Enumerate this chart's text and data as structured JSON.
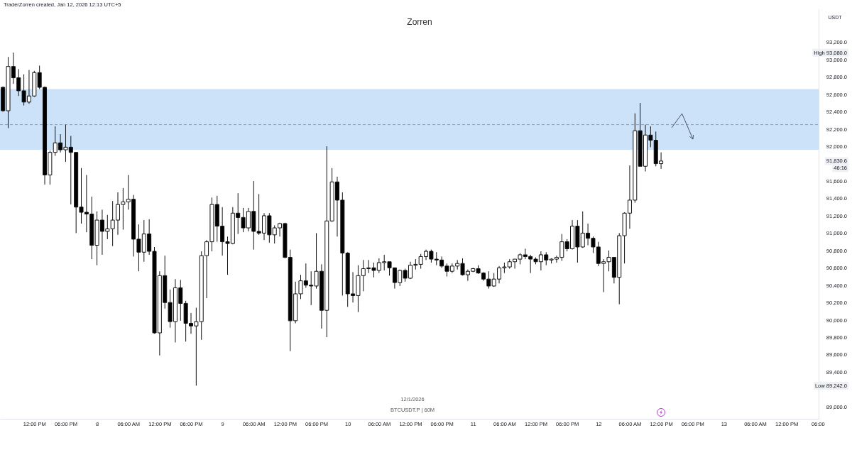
{
  "chart_data": {
    "type": "candlestick",
    "title": "Zorren",
    "subtitle": "TraderZorren created, Jan 12, 2026 12:13 UTC+5",
    "ylabel": "USDT",
    "x": [
      "2026-01-07T06:00",
      "2026-01-07T07:00",
      "2026-01-07T08:00",
      "2026-01-07T09:00",
      "2026-01-07T10:00",
      "2026-01-07T11:00",
      "2026-01-07T12:00",
      "2026-01-07T13:00",
      "2026-01-07T14:00",
      "2026-01-07T15:00",
      "2026-01-07T16:00",
      "2026-01-07T17:00",
      "2026-01-07T18:00",
      "2026-01-07T19:00",
      "2026-01-07T20:00",
      "2026-01-07T21:00",
      "2026-01-07T22:00",
      "2026-01-07T23:00",
      "2026-01-08T00:00",
      "2026-01-08T01:00",
      "2026-01-08T02:00",
      "2026-01-08T03:00",
      "2026-01-08T04:00",
      "2026-01-08T05:00",
      "2026-01-08T06:00",
      "2026-01-08T07:00",
      "2026-01-08T08:00",
      "2026-01-08T09:00",
      "2026-01-08T10:00",
      "2026-01-08T11:00",
      "2026-01-08T12:00",
      "2026-01-08T13:00",
      "2026-01-08T14:00",
      "2026-01-08T15:00",
      "2026-01-08T16:00",
      "2026-01-08T17:00",
      "2026-01-08T18:00",
      "2026-01-08T19:00",
      "2026-01-08T20:00",
      "2026-01-08T21:00",
      "2026-01-08T22:00",
      "2026-01-08T23:00",
      "2026-01-09T00:00",
      "2026-01-09T01:00",
      "2026-01-09T02:00",
      "2026-01-09T03:00",
      "2026-01-09T04:00",
      "2026-01-09T05:00",
      "2026-01-09T06:00",
      "2026-01-09T07:00",
      "2026-01-09T08:00",
      "2026-01-09T09:00",
      "2026-01-09T10:00",
      "2026-01-09T11:00",
      "2026-01-09T12:00",
      "2026-01-09T13:00",
      "2026-01-09T14:00",
      "2026-01-09T15:00",
      "2026-01-09T16:00",
      "2026-01-09T17:00",
      "2026-01-09T18:00",
      "2026-01-09T19:00",
      "2026-01-09T20:00",
      "2026-01-09T21:00",
      "2026-01-09T22:00",
      "2026-01-09T23:00",
      "2026-01-10T00:00",
      "2026-01-10T01:00",
      "2026-01-10T02:00",
      "2026-01-10T03:00",
      "2026-01-10T04:00",
      "2026-01-10T05:00",
      "2026-01-10T06:00",
      "2026-01-10T07:00",
      "2026-01-10T08:00",
      "2026-01-10T09:00",
      "2026-01-10T10:00",
      "2026-01-10T11:00",
      "2026-01-10T12:00",
      "2026-01-10T13:00",
      "2026-01-10T14:00",
      "2026-01-10T15:00",
      "2026-01-10T16:00",
      "2026-01-10T17:00",
      "2026-01-10T18:00",
      "2026-01-10T19:00",
      "2026-01-10T20:00",
      "2026-01-10T21:00",
      "2026-01-10T22:00",
      "2026-01-10T23:00",
      "2026-01-11T00:00",
      "2026-01-11T01:00",
      "2026-01-11T02:00",
      "2026-01-11T03:00",
      "2026-01-11T04:00",
      "2026-01-11T05:00",
      "2026-01-11T06:00",
      "2026-01-11T07:00",
      "2026-01-11T08:00",
      "2026-01-11T09:00",
      "2026-01-11T10:00",
      "2026-01-11T11:00",
      "2026-01-11T12:00",
      "2026-01-11T13:00",
      "2026-01-11T14:00",
      "2026-01-11T15:00",
      "2026-01-11T16:00",
      "2026-01-11T17:00",
      "2026-01-11T18:00",
      "2026-01-11T19:00",
      "2026-01-11T20:00",
      "2026-01-11T21:00",
      "2026-01-11T22:00",
      "2026-01-11T23:00",
      "2026-01-12T00:00",
      "2026-01-12T01:00",
      "2026-01-12T02:00",
      "2026-01-12T03:00",
      "2026-01-12T04:00",
      "2026-01-12T05:00",
      "2026-01-12T06:00",
      "2026-01-12T07:00",
      "2026-01-12T08:00",
      "2026-01-12T09:00",
      "2026-01-12T10:00",
      "2026-01-12T11:00",
      "2026-01-12T12:00"
    ],
    "ohlc": [
      [
        92680,
        92690,
        92400,
        92410
      ],
      [
        92410,
        93030,
        92210,
        92920
      ],
      [
        92920,
        93080,
        92720,
        92790
      ],
      [
        92790,
        92890,
        92580,
        92640
      ],
      [
        92640,
        92830,
        92470,
        92510
      ],
      [
        92510,
        92880,
        92490,
        92580
      ],
      [
        92580,
        92870,
        92570,
        92850
      ],
      [
        92850,
        92930,
        92660,
        92680
      ],
      [
        92680,
        92690,
        91560,
        91670
      ],
      [
        91670,
        91950,
        91560,
        91930
      ],
      [
        91930,
        92230,
        91890,
        92040
      ],
      [
        92040,
        92140,
        91930,
        91960
      ],
      [
        91960,
        92250,
        91820,
        91990
      ],
      [
        91990,
        92120,
        91330,
        91930
      ],
      [
        91930,
        91930,
        91000,
        91300
      ],
      [
        91300,
        91750,
        91110,
        91240
      ],
      [
        91240,
        91670,
        91010,
        91220
      ],
      [
        91220,
        91420,
        90700,
        90860
      ],
      [
        90860,
        91250,
        90630,
        91150
      ],
      [
        91150,
        91270,
        90750,
        91020
      ],
      [
        91020,
        91210,
        90930,
        91050
      ],
      [
        91050,
        91370,
        90850,
        91150
      ],
      [
        91150,
        91470,
        90980,
        91330
      ],
      [
        91330,
        91520,
        91040,
        91360
      ],
      [
        91360,
        91670,
        91270,
        91390
      ],
      [
        91390,
        91440,
        90730,
        90930
      ],
      [
        90930,
        91100,
        90560,
        90780
      ],
      [
        90780,
        91150,
        90670,
        90990
      ],
      [
        90990,
        91160,
        90750,
        90790
      ],
      [
        90790,
        90840,
        89840,
        89850
      ],
      [
        89850,
        90560,
        89590,
        90510
      ],
      [
        90510,
        90740,
        90130,
        90200
      ],
      [
        90200,
        90350,
        89910,
        89980
      ],
      [
        89980,
        90470,
        89740,
        90370
      ],
      [
        90370,
        90460,
        89990,
        90190
      ],
      [
        90190,
        90220,
        89750,
        89960
      ],
      [
        89960,
        90080,
        89840,
        89930
      ],
      [
        89930,
        90140,
        89242,
        89980
      ],
      [
        89980,
        90790,
        89770,
        90740
      ],
      [
        90740,
        90920,
        90250,
        90900
      ],
      [
        90900,
        91410,
        90790,
        91330
      ],
      [
        91330,
        91430,
        90900,
        91080
      ],
      [
        91080,
        91300,
        90740,
        90900
      ],
      [
        90900,
        90960,
        90520,
        90880
      ],
      [
        90880,
        91300,
        90870,
        91230
      ],
      [
        91230,
        91460,
        90990,
        91180
      ],
      [
        91180,
        91290,
        91010,
        91060
      ],
      [
        91060,
        91290,
        91020,
        91250
      ],
      [
        91250,
        91600,
        90810,
        91020
      ],
      [
        91020,
        91450,
        90980,
        91000
      ],
      [
        91000,
        91230,
        90920,
        91200
      ],
      [
        91200,
        91230,
        90890,
        90980
      ],
      [
        90980,
        91090,
        90880,
        91060
      ],
      [
        91060,
        91120,
        90960,
        91110
      ],
      [
        91110,
        91120,
        90710,
        90720
      ],
      [
        90720,
        90810,
        89640,
        89990
      ],
      [
        89990,
        90440,
        89960,
        90300
      ],
      [
        90300,
        90520,
        90240,
        90450
      ],
      [
        90450,
        90650,
        90370,
        90400
      ],
      [
        90400,
        90560,
        90170,
        90390
      ],
      [
        90390,
        91000,
        90360,
        90560
      ],
      [
        90560,
        90640,
        89900,
        90110
      ],
      [
        90110,
        92000,
        89800,
        91140
      ],
      [
        91140,
        91750,
        91130,
        91590
      ],
      [
        91590,
        91650,
        90960,
        91380
      ],
      [
        91380,
        91470,
        90280,
        90770
      ],
      [
        90770,
        90780,
        90150,
        90300
      ],
      [
        90300,
        90550,
        90200,
        90280
      ],
      [
        90280,
        90630,
        90090,
        90510
      ],
      [
        90510,
        90690,
        90330,
        90590
      ],
      [
        90590,
        90690,
        90540,
        90600
      ],
      [
        90600,
        90660,
        90490,
        90570
      ],
      [
        90570,
        90710,
        90540,
        90660
      ],
      [
        90660,
        90750,
        90570,
        90670
      ],
      [
        90670,
        90670,
        90510,
        90600
      ],
      [
        90600,
        90600,
        90360,
        90430
      ],
      [
        90430,
        90580,
        90390,
        90570
      ],
      [
        90570,
        90590,
        90440,
        90480
      ],
      [
        90480,
        90670,
        90470,
        90630
      ],
      [
        90630,
        90700,
        90580,
        90640
      ],
      [
        90640,
        90760,
        90590,
        90730
      ],
      [
        90730,
        90810,
        90690,
        90790
      ],
      [
        90790,
        90810,
        90660,
        90700
      ],
      [
        90700,
        90780,
        90630,
        90690
      ],
      [
        90690,
        90730,
        90600,
        90620
      ],
      [
        90620,
        90650,
        90500,
        90560
      ],
      [
        90560,
        90650,
        90540,
        90620
      ],
      [
        90620,
        90690,
        90580,
        90650
      ],
      [
        90650,
        90710,
        90510,
        90520
      ],
      [
        90520,
        90580,
        90450,
        90560
      ],
      [
        90560,
        90600,
        90550,
        90590
      ],
      [
        90590,
        90630,
        90530,
        90540
      ],
      [
        90540,
        90550,
        90450,
        90470
      ],
      [
        90470,
        90560,
        90360,
        90390
      ],
      [
        90390,
        90540,
        90380,
        90470
      ],
      [
        90470,
        90620,
        90420,
        90600
      ],
      [
        90600,
        90660,
        90540,
        90610
      ],
      [
        90610,
        90700,
        90590,
        90670
      ],
      [
        90670,
        90700,
        90590,
        90700
      ],
      [
        90700,
        90770,
        90640,
        90750
      ],
      [
        90750,
        90820,
        90700,
        90730
      ],
      [
        90730,
        90750,
        90540,
        90700
      ],
      [
        90700,
        90720,
        90640,
        90670
      ],
      [
        90670,
        90790,
        90570,
        90750
      ],
      [
        90750,
        90780,
        90630,
        90690
      ],
      [
        90690,
        90710,
        90650,
        90700
      ],
      [
        90700,
        90740,
        90660,
        90720
      ],
      [
        90720,
        90990,
        90680,
        90900
      ],
      [
        90900,
        90930,
        90790,
        90820
      ],
      [
        90820,
        91150,
        90810,
        91080
      ],
      [
        91080,
        91150,
        90660,
        90840
      ],
      [
        90840,
        91250,
        90830,
        91000
      ],
      [
        91000,
        91110,
        90860,
        90940
      ],
      [
        90940,
        90960,
        90770,
        90840
      ],
      [
        90840,
        90900,
        90620,
        90650
      ],
      [
        90650,
        90700,
        90320,
        90670
      ],
      [
        90670,
        90800,
        90560,
        90720
      ],
      [
        90720,
        90720,
        90420,
        90490
      ],
      [
        90490,
        91000,
        90180,
        90970
      ],
      [
        90970,
        91240,
        90650,
        91230
      ],
      [
        91230,
        91780,
        91050,
        91380
      ],
      [
        91380,
        92380,
        91350,
        92180
      ],
      [
        92180,
        92500,
        91770,
        91770
      ],
      [
        91770,
        92250,
        91710,
        92130
      ],
      [
        92130,
        92230,
        91990,
        92070
      ],
      [
        92070,
        92170,
        91770,
        91800
      ],
      [
        91800,
        91930,
        91740,
        91830.6
      ]
    ],
    "xlim": [
      "2026-01-07T05:26",
      "2026-01-13T18:10"
    ],
    "ylim": [
      88860,
      93580
    ],
    "xticks": [
      {
        "value": "2026-01-07T12:00",
        "label": "12:00 PM"
      },
      {
        "value": "2026-01-07T18:00",
        "label": "06:00 PM"
      },
      {
        "value": "2026-01-08T00:00",
        "label": "8"
      },
      {
        "value": "2026-01-08T06:00",
        "label": "06:00 AM"
      },
      {
        "value": "2026-01-08T12:00",
        "label": "12:00 PM"
      },
      {
        "value": "2026-01-08T18:00",
        "label": "06:00 PM"
      },
      {
        "value": "2026-01-09T00:00",
        "label": "9"
      },
      {
        "value": "2026-01-09T06:00",
        "label": "06:00 AM"
      },
      {
        "value": "2026-01-09T12:00",
        "label": "12:00 PM"
      },
      {
        "value": "2026-01-09T18:00",
        "label": "06:00 PM"
      },
      {
        "value": "2026-01-10T00:00",
        "label": "10"
      },
      {
        "value": "2026-01-10T06:00",
        "label": "06:00 AM"
      },
      {
        "value": "2026-01-10T12:00",
        "label": "12:00 PM"
      },
      {
        "value": "2026-01-10T18:00",
        "label": "06:00 PM"
      },
      {
        "value": "2026-01-11T00:00",
        "label": "11"
      },
      {
        "value": "2026-01-11T06:00",
        "label": "06:00 AM"
      },
      {
        "value": "2026-01-11T12:00",
        "label": "12:00 PM"
      },
      {
        "value": "2026-01-11T18:00",
        "label": "06:00 PM"
      },
      {
        "value": "2026-01-12T00:00",
        "label": "12"
      },
      {
        "value": "2026-01-12T06:00",
        "label": "06:00 AM"
      },
      {
        "value": "2026-01-12T12:00",
        "label": "12:00 PM"
      },
      {
        "value": "2026-01-12T18:00",
        "label": "06:00 PM"
      },
      {
        "value": "2026-01-13T00:00",
        "label": "13"
      },
      {
        "value": "2026-01-13T06:00",
        "label": "06:00 AM"
      },
      {
        "value": "2026-01-13T12:00",
        "label": "12:00 PM"
      },
      {
        "value": "2026-01-13T18:00",
        "label": "06:00"
      }
    ],
    "yticks": [
      {
        "value": 89000,
        "label": "89,000.0"
      },
      {
        "value": 89400,
        "label": "89,400.0"
      },
      {
        "value": 89600,
        "label": "89,600.0"
      },
      {
        "value": 89800,
        "label": "89,800.0"
      },
      {
        "value": 90000,
        "label": "90,000.0"
      },
      {
        "value": 90200,
        "label": "90,200.0"
      },
      {
        "value": 90400,
        "label": "90,400.0"
      },
      {
        "value": 90600,
        "label": "90,600.0"
      },
      {
        "value": 90800,
        "label": "90,800.0"
      },
      {
        "value": 91000,
        "label": "91,000.0"
      },
      {
        "value": 91200,
        "label": "91,200.0"
      },
      {
        "value": 91400,
        "label": "91,400.0"
      },
      {
        "value": 91600,
        "label": "91,600.0"
      },
      {
        "value": 92000,
        "label": "92,000.0"
      },
      {
        "value": 92200,
        "label": "92,200.0"
      },
      {
        "value": 92400,
        "label": "92,400.0"
      },
      {
        "value": 92600,
        "label": "92,600.0"
      },
      {
        "value": 92800,
        "label": "92,800.0"
      },
      {
        "value": 93000,
        "label": "93,000.0"
      },
      {
        "value": 93200,
        "label": "93,200.0"
      }
    ],
    "bands": [
      {
        "axis": "y",
        "from": 91960,
        "to": 92660,
        "color": "#cce2f8"
      }
    ],
    "ref_lines": [
      {
        "axis": "y",
        "value": 92250,
        "color": "#8a9bb0",
        "line_style": "dashed"
      }
    ],
    "annotations": [
      "High 93,080.0",
      "Low 89,242.0",
      "91,830.6",
      "46:16",
      "12/1/2026",
      "BTCUSDT.P | 60M"
    ]
  }
}
